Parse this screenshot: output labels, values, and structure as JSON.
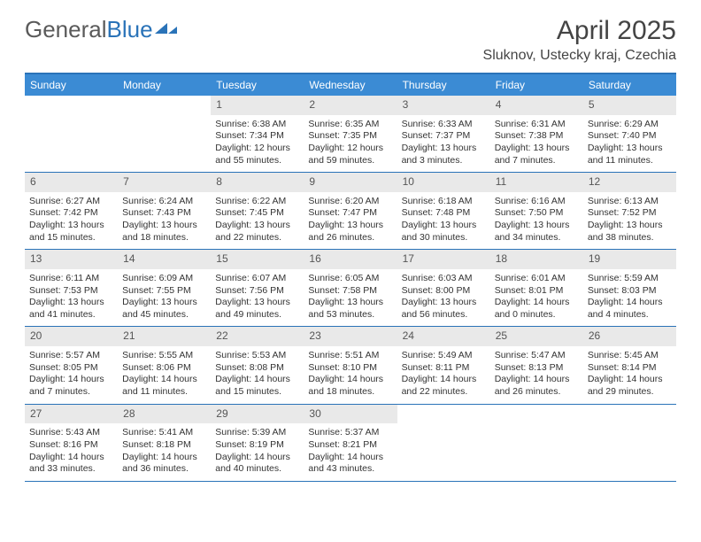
{
  "logo": {
    "text1": "General",
    "text2": "Blue"
  },
  "title": "April 2025",
  "location": "Sluknov, Ustecky kraj, Czechia",
  "colors": {
    "header_bg": "#3b8bd4",
    "border": "#2a73b8",
    "daynum_bg": "#e9e9e9",
    "text": "#333333"
  },
  "day_names": [
    "Sunday",
    "Monday",
    "Tuesday",
    "Wednesday",
    "Thursday",
    "Friday",
    "Saturday"
  ],
  "weeks": [
    [
      {
        "n": "",
        "sr": "",
        "ss": "",
        "dl1": "",
        "dl2": ""
      },
      {
        "n": "",
        "sr": "",
        "ss": "",
        "dl1": "",
        "dl2": ""
      },
      {
        "n": "1",
        "sr": "Sunrise: 6:38 AM",
        "ss": "Sunset: 7:34 PM",
        "dl1": "Daylight: 12 hours",
        "dl2": "and 55 minutes."
      },
      {
        "n": "2",
        "sr": "Sunrise: 6:35 AM",
        "ss": "Sunset: 7:35 PM",
        "dl1": "Daylight: 12 hours",
        "dl2": "and 59 minutes."
      },
      {
        "n": "3",
        "sr": "Sunrise: 6:33 AM",
        "ss": "Sunset: 7:37 PM",
        "dl1": "Daylight: 13 hours",
        "dl2": "and 3 minutes."
      },
      {
        "n": "4",
        "sr": "Sunrise: 6:31 AM",
        "ss": "Sunset: 7:38 PM",
        "dl1": "Daylight: 13 hours",
        "dl2": "and 7 minutes."
      },
      {
        "n": "5",
        "sr": "Sunrise: 6:29 AM",
        "ss": "Sunset: 7:40 PM",
        "dl1": "Daylight: 13 hours",
        "dl2": "and 11 minutes."
      }
    ],
    [
      {
        "n": "6",
        "sr": "Sunrise: 6:27 AM",
        "ss": "Sunset: 7:42 PM",
        "dl1": "Daylight: 13 hours",
        "dl2": "and 15 minutes."
      },
      {
        "n": "7",
        "sr": "Sunrise: 6:24 AM",
        "ss": "Sunset: 7:43 PM",
        "dl1": "Daylight: 13 hours",
        "dl2": "and 18 minutes."
      },
      {
        "n": "8",
        "sr": "Sunrise: 6:22 AM",
        "ss": "Sunset: 7:45 PM",
        "dl1": "Daylight: 13 hours",
        "dl2": "and 22 minutes."
      },
      {
        "n": "9",
        "sr": "Sunrise: 6:20 AM",
        "ss": "Sunset: 7:47 PM",
        "dl1": "Daylight: 13 hours",
        "dl2": "and 26 minutes."
      },
      {
        "n": "10",
        "sr": "Sunrise: 6:18 AM",
        "ss": "Sunset: 7:48 PM",
        "dl1": "Daylight: 13 hours",
        "dl2": "and 30 minutes."
      },
      {
        "n": "11",
        "sr": "Sunrise: 6:16 AM",
        "ss": "Sunset: 7:50 PM",
        "dl1": "Daylight: 13 hours",
        "dl2": "and 34 minutes."
      },
      {
        "n": "12",
        "sr": "Sunrise: 6:13 AM",
        "ss": "Sunset: 7:52 PM",
        "dl1": "Daylight: 13 hours",
        "dl2": "and 38 minutes."
      }
    ],
    [
      {
        "n": "13",
        "sr": "Sunrise: 6:11 AM",
        "ss": "Sunset: 7:53 PM",
        "dl1": "Daylight: 13 hours",
        "dl2": "and 41 minutes."
      },
      {
        "n": "14",
        "sr": "Sunrise: 6:09 AM",
        "ss": "Sunset: 7:55 PM",
        "dl1": "Daylight: 13 hours",
        "dl2": "and 45 minutes."
      },
      {
        "n": "15",
        "sr": "Sunrise: 6:07 AM",
        "ss": "Sunset: 7:56 PM",
        "dl1": "Daylight: 13 hours",
        "dl2": "and 49 minutes."
      },
      {
        "n": "16",
        "sr": "Sunrise: 6:05 AM",
        "ss": "Sunset: 7:58 PM",
        "dl1": "Daylight: 13 hours",
        "dl2": "and 53 minutes."
      },
      {
        "n": "17",
        "sr": "Sunrise: 6:03 AM",
        "ss": "Sunset: 8:00 PM",
        "dl1": "Daylight: 13 hours",
        "dl2": "and 56 minutes."
      },
      {
        "n": "18",
        "sr": "Sunrise: 6:01 AM",
        "ss": "Sunset: 8:01 PM",
        "dl1": "Daylight: 14 hours",
        "dl2": "and 0 minutes."
      },
      {
        "n": "19",
        "sr": "Sunrise: 5:59 AM",
        "ss": "Sunset: 8:03 PM",
        "dl1": "Daylight: 14 hours",
        "dl2": "and 4 minutes."
      }
    ],
    [
      {
        "n": "20",
        "sr": "Sunrise: 5:57 AM",
        "ss": "Sunset: 8:05 PM",
        "dl1": "Daylight: 14 hours",
        "dl2": "and 7 minutes."
      },
      {
        "n": "21",
        "sr": "Sunrise: 5:55 AM",
        "ss": "Sunset: 8:06 PM",
        "dl1": "Daylight: 14 hours",
        "dl2": "and 11 minutes."
      },
      {
        "n": "22",
        "sr": "Sunrise: 5:53 AM",
        "ss": "Sunset: 8:08 PM",
        "dl1": "Daylight: 14 hours",
        "dl2": "and 15 minutes."
      },
      {
        "n": "23",
        "sr": "Sunrise: 5:51 AM",
        "ss": "Sunset: 8:10 PM",
        "dl1": "Daylight: 14 hours",
        "dl2": "and 18 minutes."
      },
      {
        "n": "24",
        "sr": "Sunrise: 5:49 AM",
        "ss": "Sunset: 8:11 PM",
        "dl1": "Daylight: 14 hours",
        "dl2": "and 22 minutes."
      },
      {
        "n": "25",
        "sr": "Sunrise: 5:47 AM",
        "ss": "Sunset: 8:13 PM",
        "dl1": "Daylight: 14 hours",
        "dl2": "and 26 minutes."
      },
      {
        "n": "26",
        "sr": "Sunrise: 5:45 AM",
        "ss": "Sunset: 8:14 PM",
        "dl1": "Daylight: 14 hours",
        "dl2": "and 29 minutes."
      }
    ],
    [
      {
        "n": "27",
        "sr": "Sunrise: 5:43 AM",
        "ss": "Sunset: 8:16 PM",
        "dl1": "Daylight: 14 hours",
        "dl2": "and 33 minutes."
      },
      {
        "n": "28",
        "sr": "Sunrise: 5:41 AM",
        "ss": "Sunset: 8:18 PM",
        "dl1": "Daylight: 14 hours",
        "dl2": "and 36 minutes."
      },
      {
        "n": "29",
        "sr": "Sunrise: 5:39 AM",
        "ss": "Sunset: 8:19 PM",
        "dl1": "Daylight: 14 hours",
        "dl2": "and 40 minutes."
      },
      {
        "n": "30",
        "sr": "Sunrise: 5:37 AM",
        "ss": "Sunset: 8:21 PM",
        "dl1": "Daylight: 14 hours",
        "dl2": "and 43 minutes."
      },
      {
        "n": "",
        "sr": "",
        "ss": "",
        "dl1": "",
        "dl2": ""
      },
      {
        "n": "",
        "sr": "",
        "ss": "",
        "dl1": "",
        "dl2": ""
      },
      {
        "n": "",
        "sr": "",
        "ss": "",
        "dl1": "",
        "dl2": ""
      }
    ]
  ]
}
